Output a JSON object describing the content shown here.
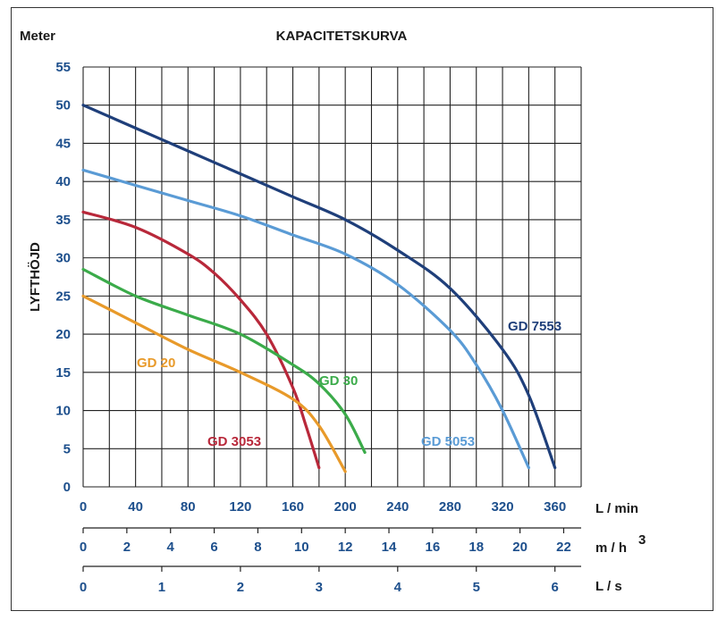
{
  "chart_data": {
    "type": "line",
    "title": "KAPACITETSKURVA",
    "y_unit_label": "Meter",
    "ylabel": "LYFTHÖJD",
    "ylim": [
      0,
      55
    ],
    "xlim": [
      0,
      380
    ],
    "y_ticks": [
      0,
      5,
      10,
      15,
      20,
      25,
      30,
      35,
      40,
      45,
      50,
      55
    ],
    "x_axes": [
      {
        "unit": "L / min",
        "ticks": [
          "0",
          "40",
          "80",
          "120",
          "160",
          "200",
          "240",
          "280",
          "320",
          "360"
        ],
        "values": [
          0,
          40,
          80,
          120,
          160,
          200,
          240,
          280,
          320,
          360
        ]
      },
      {
        "unit": "m / h",
        "unit_sup": "3",
        "ticks": [
          "0",
          "2",
          "4",
          "6",
          "8",
          "10",
          "12",
          "14",
          "16",
          "18",
          "20",
          "22"
        ],
        "values": [
          0,
          2,
          4,
          6,
          8,
          10,
          12,
          14,
          16,
          18,
          20,
          22
        ]
      },
      {
        "unit": "L / s",
        "ticks": [
          "0",
          "1",
          "2",
          "3",
          "4",
          "5",
          "6"
        ],
        "values": [
          0,
          1,
          2,
          3,
          4,
          5,
          6
        ]
      }
    ],
    "series": [
      {
        "name": "GD 7553",
        "color": "#1f3f7a",
        "x": [
          0,
          40,
          80,
          120,
          160,
          200,
          240,
          280,
          320,
          340,
          360
        ],
        "y": [
          50,
          47,
          44,
          41,
          38,
          35,
          31,
          26,
          18,
          12,
          2.5
        ]
      },
      {
        "name": "GD 5053",
        "color": "#5a9bd5",
        "x": [
          0,
          40,
          80,
          120,
          160,
          200,
          240,
          280,
          300,
          320,
          340
        ],
        "y": [
          41.5,
          39.5,
          37.5,
          35.5,
          33,
          30.5,
          26.5,
          20.5,
          16,
          10,
          2.5
        ]
      },
      {
        "name": "GD 3053",
        "color": "#b8283a",
        "x": [
          0,
          40,
          80,
          100,
          120,
          140,
          160,
          170,
          180
        ],
        "y": [
          36,
          34,
          30.5,
          28,
          24.5,
          20,
          13,
          8,
          2.5
        ]
      },
      {
        "name": "GD 30",
        "color": "#3bab4a",
        "x": [
          0,
          40,
          80,
          120,
          160,
          180,
          200,
          215
        ],
        "y": [
          28.5,
          25,
          22.5,
          20,
          16,
          13.5,
          9.5,
          4.5
        ]
      },
      {
        "name": "GD 20",
        "color": "#e89a2a",
        "x": [
          0,
          40,
          80,
          120,
          160,
          180,
          200
        ],
        "y": [
          25,
          21.5,
          18,
          15,
          11.5,
          8,
          2
        ]
      }
    ]
  }
}
